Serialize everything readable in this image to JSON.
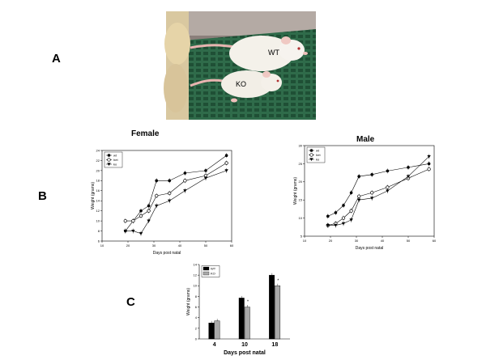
{
  "figure": {
    "panel_labels": [
      "A",
      "B",
      "C"
    ],
    "photo": {
      "label_wt": "WT",
      "label_ko": "KO"
    }
  },
  "chart_data": [
    {
      "type": "line",
      "title": "Female",
      "xlabel": "Days post natal",
      "ylabel": "Weight (grams)",
      "xlim": [
        10,
        60
      ],
      "ylim": [
        6,
        24
      ],
      "xticks": [
        10,
        20,
        30,
        40,
        50,
        60
      ],
      "yticks": [
        6,
        8,
        10,
        12,
        14,
        16,
        18,
        20,
        22,
        24
      ],
      "legend": "top-left",
      "series": [
        {
          "name": "wt",
          "marker": "circle-filled",
          "x": [
            19,
            22,
            25,
            28,
            31,
            36,
            42,
            50,
            58
          ],
          "y": [
            8,
            10,
            12,
            13,
            18,
            18,
            19.5,
            20,
            23
          ]
        },
        {
          "name": "het",
          "marker": "circle-open",
          "x": [
            19,
            22,
            25,
            28,
            31,
            36,
            42,
            50,
            58
          ],
          "y": [
            10,
            10,
            11,
            12,
            15,
            15.5,
            18,
            19,
            21.5
          ]
        },
        {
          "name": "ko",
          "marker": "triangle-down-filled",
          "x": [
            19,
            22,
            25,
            28,
            31,
            36,
            42,
            50,
            58
          ],
          "y": [
            8,
            8,
            7.5,
            10,
            13,
            14,
            16,
            18.5,
            20
          ]
        }
      ]
    },
    {
      "type": "line",
      "title": "Male",
      "xlabel": "Days post natal",
      "ylabel": "Weight (grams)",
      "xlim": [
        10,
        60
      ],
      "ylim": [
        5,
        30
      ],
      "xticks": [
        10,
        20,
        30,
        40,
        50,
        60
      ],
      "yticks": [
        5,
        10,
        15,
        20,
        25,
        30
      ],
      "legend": "top-left",
      "series": [
        {
          "name": "wt",
          "marker": "circle-filled",
          "x": [
            19,
            22,
            25,
            28,
            31,
            36,
            42,
            50,
            58
          ],
          "y": [
            10.5,
            11.5,
            13.5,
            17,
            21.5,
            22,
            23,
            24,
            25
          ]
        },
        {
          "name": "het",
          "marker": "circle-open",
          "x": [
            19,
            22,
            25,
            28,
            31,
            36,
            42,
            50,
            58
          ],
          "y": [
            8,
            8.5,
            10,
            12,
            16,
            17,
            18.5,
            21,
            23.5
          ]
        },
        {
          "name": "ko",
          "marker": "triangle-down-filled",
          "x": [
            19,
            22,
            25,
            28,
            31,
            36,
            42,
            50,
            58
          ],
          "y": [
            8,
            8,
            8.5,
            9.5,
            15,
            15.5,
            17.5,
            21.5,
            27
          ]
        }
      ]
    },
    {
      "type": "bar",
      "xlabel": "Days post natal",
      "ylabel": "Weight (grams)",
      "categories": [
        "4",
        "10",
        "18"
      ],
      "ylim": [
        0,
        14
      ],
      "yticks": [
        0,
        2,
        4,
        6,
        8,
        10,
        12,
        14
      ],
      "legend": "top-left",
      "series": [
        {
          "name": "WT",
          "color": "#000000",
          "values": [
            3,
            7.7,
            12
          ]
        },
        {
          "name": "KO",
          "color": "#a9a9a9",
          "values": [
            3.4,
            6,
            10
          ]
        }
      ],
      "annotations": [
        "*",
        "*"
      ]
    }
  ]
}
